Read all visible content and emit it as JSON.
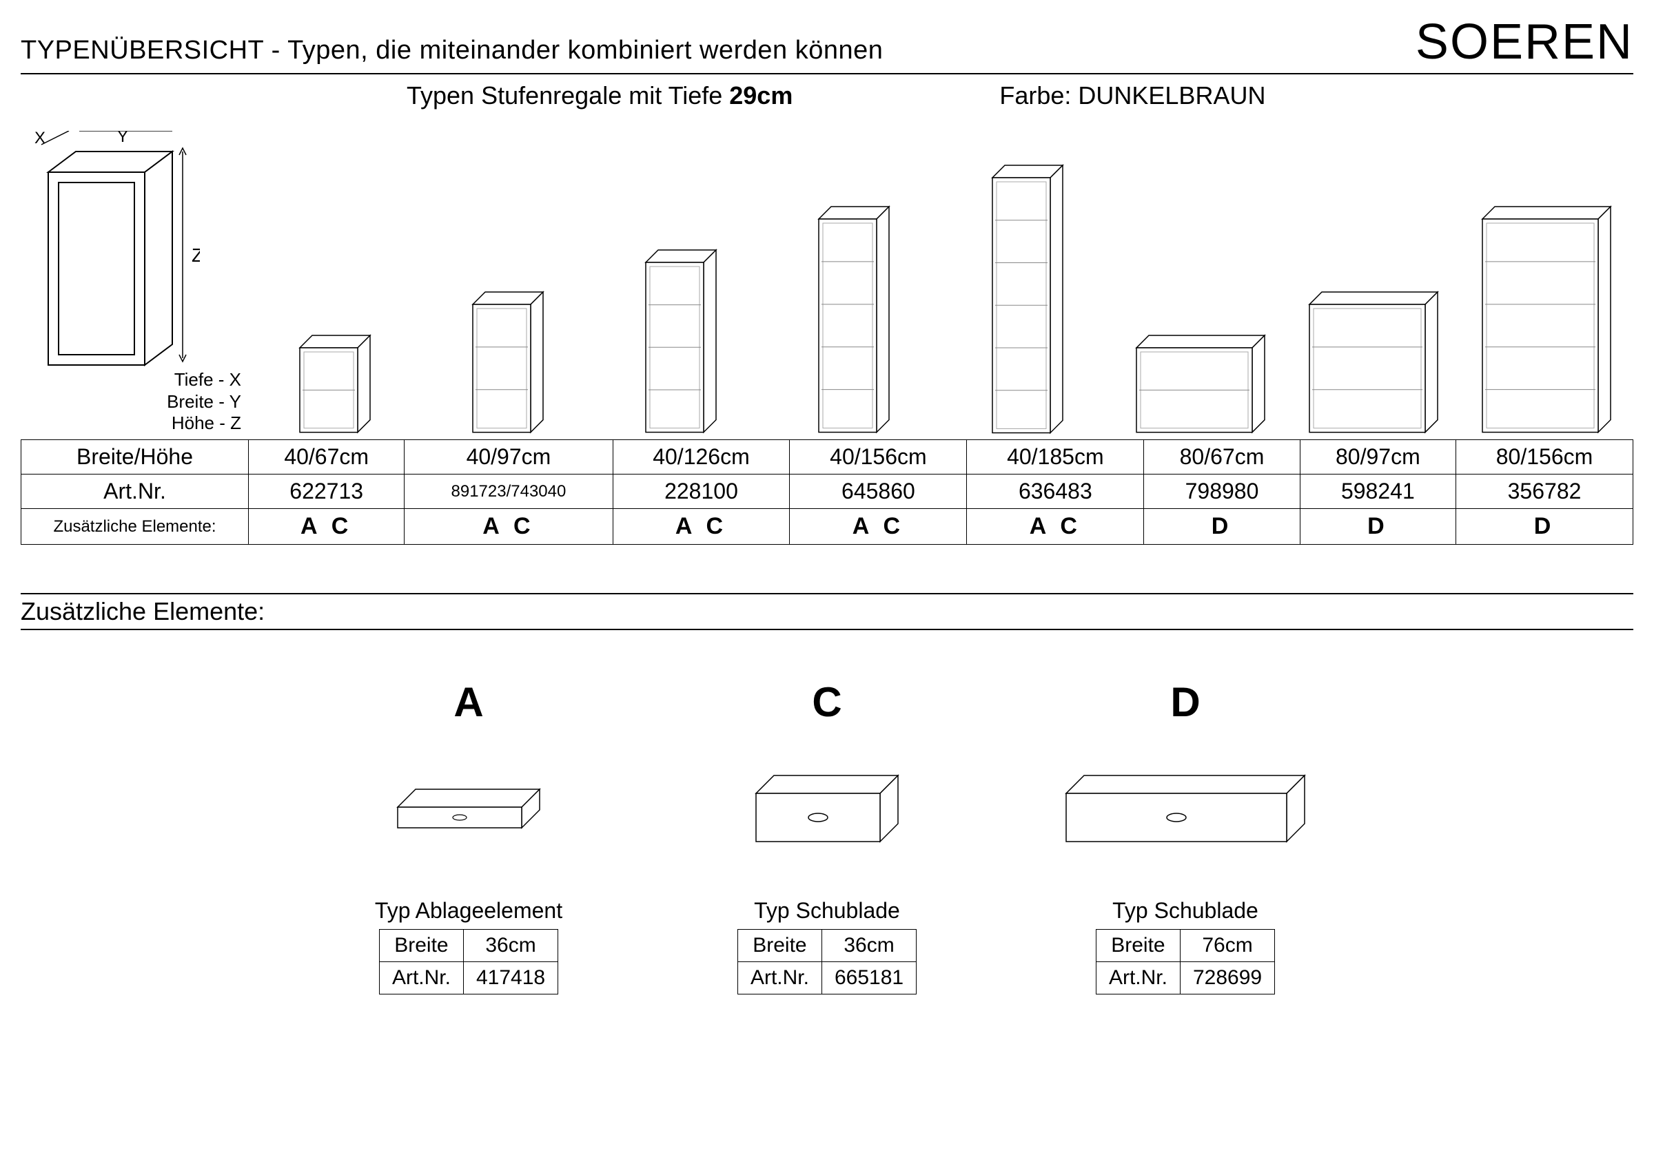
{
  "header": {
    "title": "TYPENÜBERSICHT - Typen, die miteinander kombiniert werden können",
    "brand": "SOEREN",
    "subtitle_prefix": "Typen Stufenregale mit Tiefe ",
    "depth": "29cm",
    "color_label": "Farbe: DUNKELBRAUN"
  },
  "dim_diagram": {
    "x_label": "X",
    "y_label": "Y",
    "z_label": "Z",
    "lines": {
      "tiefe": "Tiefe - X",
      "breite": "Breite - Y",
      "hoehe": "Höhe - Z"
    }
  },
  "shelves": [
    {
      "size": "40/67cm",
      "art": "622713",
      "extras": "A C",
      "w": 40,
      "h": 67
    },
    {
      "size": "40/97cm",
      "art": "891723/743040",
      "extras": "A C",
      "w": 40,
      "h": 97
    },
    {
      "size": "40/126cm",
      "art": "228100",
      "extras": "A C",
      "w": 40,
      "h": 126
    },
    {
      "size": "40/156cm",
      "art": "645860",
      "extras": "A C",
      "w": 40,
      "h": 156
    },
    {
      "size": "40/185cm",
      "art": "636483",
      "extras": "A C",
      "w": 40,
      "h": 185
    },
    {
      "size": "80/67cm",
      "art": "798980",
      "extras": "D",
      "w": 80,
      "h": 67
    },
    {
      "size": "80/97cm",
      "art": "598241",
      "extras": "D",
      "w": 80,
      "h": 97
    },
    {
      "size": "80/156cm",
      "art": "356782",
      "extras": "D",
      "w": 80,
      "h": 156
    }
  ],
  "table_labels": {
    "size": "Breite/Höhe",
    "art": "Art.Nr.",
    "extras": "Zusätzliche Elemente:"
  },
  "section2_title": "Zusätzliche Elemente:",
  "elements": [
    {
      "letter": "A",
      "type": "Typ Ablageelement",
      "breite_label": "Breite",
      "breite": "36cm",
      "art_label": "Art.Nr.",
      "art": "417418",
      "drawer_w": 180,
      "drawer_h": 30
    },
    {
      "letter": "C",
      "type": "Typ Schublade",
      "breite_label": "Breite",
      "breite": "36cm",
      "art_label": "Art.Nr.",
      "art": "665181",
      "drawer_w": 180,
      "drawer_h": 70
    },
    {
      "letter": "D",
      "type": "Typ Schublade",
      "breite_label": "Breite",
      "breite": "76cm",
      "art_label": "Art.Nr.",
      "art": "728699",
      "drawer_w": 320,
      "drawer_h": 70
    }
  ],
  "style": {
    "stroke": "#000000",
    "stroke_light": "#555555",
    "fill": "#ffffff",
    "scale": 2.1
  }
}
